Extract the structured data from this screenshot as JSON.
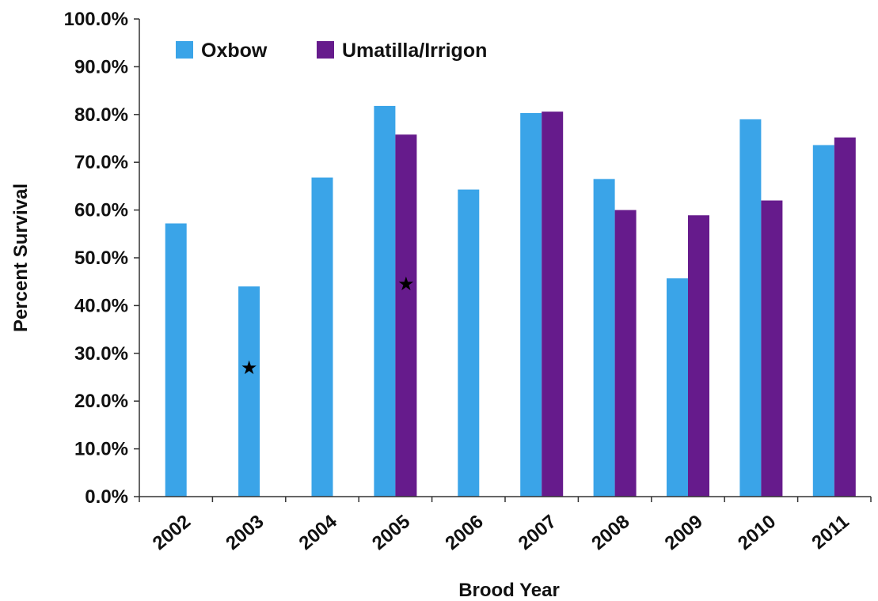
{
  "chart_data": {
    "type": "bar",
    "title": "",
    "xlabel": "Brood Year",
    "ylabel": "Percent Survival",
    "categories": [
      "2002",
      "2003",
      "2004",
      "2005",
      "2006",
      "2007",
      "2008",
      "2009",
      "2010",
      "2011"
    ],
    "series": [
      {
        "name": "Oxbow",
        "color": "#3aa4e8",
        "values": [
          57.2,
          44.0,
          66.8,
          81.8,
          64.3,
          80.3,
          66.5,
          45.7,
          79.0,
          73.6
        ]
      },
      {
        "name": "Umatilla/Irrigon",
        "color": "#661b8c",
        "values": [
          null,
          null,
          null,
          75.8,
          null,
          80.6,
          60.0,
          58.9,
          62.0,
          75.2
        ]
      }
    ],
    "ylim": [
      0,
      100
    ],
    "yticks": [
      "0.0%",
      "10.0%",
      "20.0%",
      "30.0%",
      "40.0%",
      "50.0%",
      "60.0%",
      "70.0%",
      "80.0%",
      "90.0%",
      "100.0%"
    ],
    "grid": false,
    "legend_position": "top-left",
    "markers": [
      {
        "symbol": "★",
        "category": "2003",
        "series": "Oxbow",
        "y": 27
      },
      {
        "symbol": "★",
        "category": "2005",
        "series": "Umatilla/Irrigon",
        "y": 44.5
      }
    ]
  }
}
